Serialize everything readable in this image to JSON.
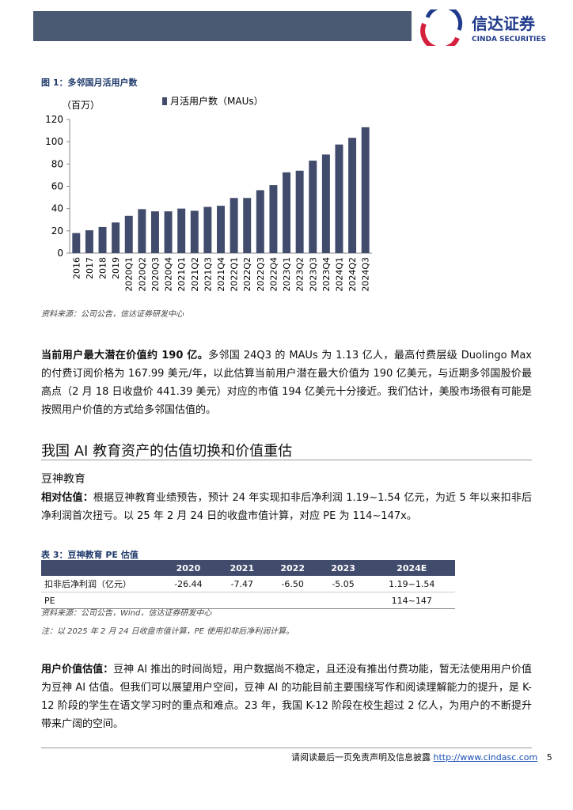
{
  "header": {
    "logo_cn": "信达证券",
    "logo_en": "CINDA SECURITIES"
  },
  "figure": {
    "caption": "图 1：多邻国月活用户数",
    "source": "资料来源：公司公告，信达证券研发中心",
    "chart_data": {
      "type": "bar",
      "y_label": "（百万）",
      "categories": [
        "2016",
        "2017",
        "2018",
        "2019",
        "2020Q1",
        "2020Q2",
        "2020Q3",
        "2020Q4",
        "2021Q1",
        "2021Q2",
        "2021Q3",
        "2021Q4",
        "2022Q1",
        "2022Q2",
        "2022Q3",
        "2022Q4",
        "2023Q1",
        "2023Q2",
        "2023Q3",
        "2023Q4",
        "2024Q1",
        "2024Q2",
        "2024Q3"
      ],
      "series": [
        {
          "name": "月活用户数（MAUs）",
          "color": "#414b6b",
          "values": [
            18,
            20.5,
            23.5,
            27.5,
            33.5,
            39.5,
            37.5,
            37.5,
            40,
            38,
            41.5,
            42.5,
            49.5,
            49.5,
            56.5,
            61,
            72.5,
            74,
            83,
            88.5,
            97.5,
            103.5,
            113
          ]
        }
      ],
      "ylim": [
        0,
        120
      ],
      "yticks": [
        0,
        20,
        40,
        60,
        80,
        100,
        120
      ],
      "grid": false,
      "legend": "top"
    }
  },
  "paragraph1": {
    "lead": "当前用户最大潜在价值约 190 亿。",
    "body": "多邻国 24Q3 的 MAUs 为 1.13 亿人，最高付费层级 Duolingo Max 的付费订阅价格为 167.99 美元/年，以此估算当前用户潜在最大价值为 190 亿美元，与近期多邻国股价最高点（2 月 18 日收盘价 441.39 美元）对应的市值 194 亿美元十分接近。我们估计，美股市场很有可能是按照用户价值的方式给多邻国估值的。"
  },
  "section": {
    "title": "我国 AI 教育资产的估值切换和价值重估",
    "subtitle": "豆神教育"
  },
  "paragraph2": {
    "lead": "相对估值：",
    "body": "根据豆神教育业绩预告，预计 24 年实现扣非后净利润 1.19~1.54 亿元，为近 5 年以来扣非后净利润首次扭亏。以 25 年 2 月 24 日的收盘市值计算，对应 PE 为 114~147x。"
  },
  "table": {
    "caption": "表 3：豆神教育 PE 估值",
    "columns": [
      "2020",
      "2021",
      "2022",
      "2023",
      "2024E"
    ],
    "rows": [
      [
        "扣非后净利润（亿元）",
        "-26.44",
        "-7.47",
        "-6.50",
        "-5.05",
        "1.19~1.54"
      ],
      [
        "PE",
        "114~147"
      ]
    ],
    "source": "资料来源：公司公告，Wind，信达证券研发中心",
    "note": "注：以 2025 年 2 月 24 日收盘市值计算，PE 使用扣非后净利润计算。"
  },
  "paragraph3": {
    "lead": "用户价值估值：",
    "body": "豆神 AI 推出的时间尚短，用户数据尚不稳定，且还没有推出付费功能，暂无法使用用户价值为豆神 AI 估值。但我们可以展望用户空间，豆神 AI 的功能目前主要围绕写作和阅读理解能力的提升，是 K-12 阶段的学生在语文学习时的重点和难点。23 年，我国 K-12 阶段在校生超过 2 亿人，为用户的不断提升带来广阔的空间。"
  },
  "footer": {
    "disclaimer": "请阅读最后一页免责声明及信息披露",
    "url": "http://www.cindasc.com",
    "page": "5"
  }
}
